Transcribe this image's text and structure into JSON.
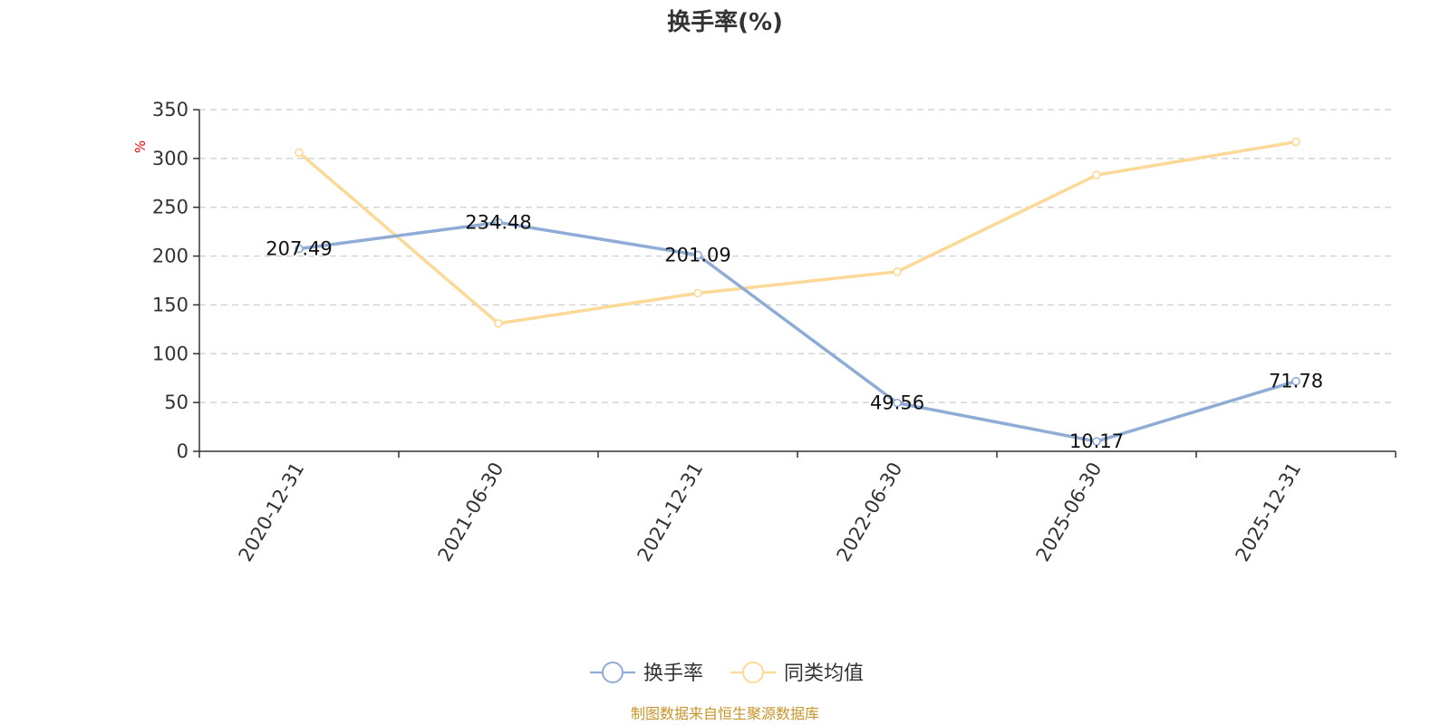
{
  "chart_data": {
    "type": "line",
    "title": "换手率(%)",
    "ylabel": "%",
    "ylim": [
      0,
      350
    ],
    "yticks": [
      0,
      50,
      100,
      150,
      200,
      250,
      300,
      350
    ],
    "categories": [
      "2020-12-31",
      "2021-06-30",
      "2021-12-31",
      "2022-06-30",
      "2025-06-30",
      "2025-12-31"
    ],
    "grid": true,
    "legend_position": "bottom-center",
    "series": [
      {
        "name": "换手率",
        "color": "#8eacd6",
        "values": [
          207.49,
          234.48,
          201.09,
          49.56,
          10.17,
          71.78
        ],
        "show_labels": true
      },
      {
        "name": "同类均值",
        "color": "#fcd996",
        "values": [
          306,
          131,
          162,
          184,
          283,
          317
        ],
        "show_labels": false
      }
    ]
  },
  "source_text": "制图数据来自恒生聚源数据库",
  "colors": {
    "axis": "#333333",
    "grid": "#cccccc",
    "unit": "#ee0000",
    "source": "#c8952a"
  }
}
